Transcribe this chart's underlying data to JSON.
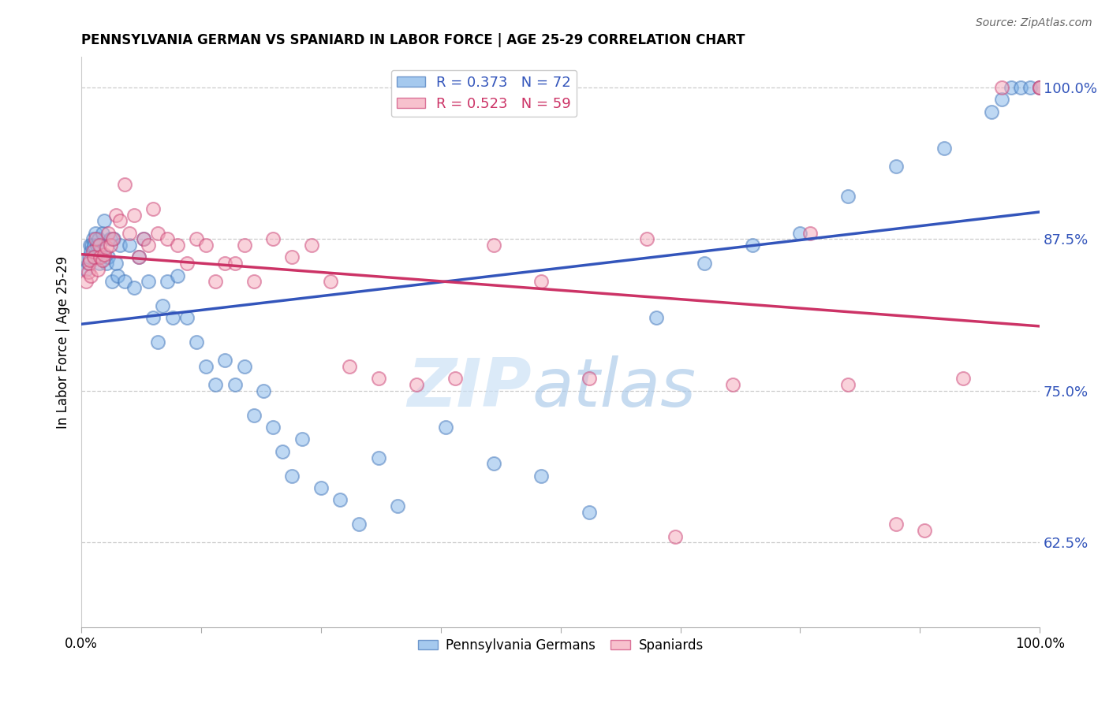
{
  "title": "PENNSYLVANIA GERMAN VS SPANIARD IN LABOR FORCE | AGE 25-29 CORRELATION CHART",
  "source": "Source: ZipAtlas.com",
  "ylabel": "In Labor Force | Age 25-29",
  "xlim": [
    0.0,
    1.0
  ],
  "ylim": [
    0.555,
    1.025
  ],
  "yticks": [
    0.625,
    0.75,
    0.875,
    1.0
  ],
  "ytick_labels": [
    "62.5%",
    "75.0%",
    "87.5%",
    "100.0%"
  ],
  "xticks": [
    0.0,
    0.125,
    0.25,
    0.375,
    0.5,
    0.625,
    0.75,
    0.875,
    1.0
  ],
  "xtick_labels": [
    "0.0%",
    "",
    "",
    "",
    "",
    "",
    "",
    "",
    "100.0%"
  ],
  "bg_color": "#ffffff",
  "grid_color": "#cccccc",
  "blue_color": "#7fb3e8",
  "pink_color": "#f4a7b9",
  "blue_edge_color": "#4477bb",
  "pink_edge_color": "#cc4477",
  "blue_line_color": "#3355bb",
  "pink_line_color": "#cc3366",
  "legend_blue_label": "R = 0.373   N = 72",
  "legend_pink_label": "R = 0.523   N = 59",
  "watermark_zip": "ZIP",
  "watermark_atlas": "atlas",
  "blue_x": [
    0.005,
    0.007,
    0.008,
    0.009,
    0.01,
    0.011,
    0.012,
    0.013,
    0.014,
    0.015,
    0.016,
    0.017,
    0.018,
    0.019,
    0.02,
    0.022,
    0.024,
    0.026,
    0.028,
    0.03,
    0.032,
    0.034,
    0.036,
    0.038,
    0.04,
    0.045,
    0.05,
    0.055,
    0.06,
    0.065,
    0.07,
    0.075,
    0.08,
    0.085,
    0.09,
    0.095,
    0.1,
    0.11,
    0.12,
    0.13,
    0.14,
    0.15,
    0.16,
    0.17,
    0.18,
    0.19,
    0.2,
    0.21,
    0.22,
    0.23,
    0.25,
    0.27,
    0.29,
    0.31,
    0.33,
    0.38,
    0.43,
    0.48,
    0.53,
    0.6,
    0.65,
    0.7,
    0.75,
    0.8,
    0.85,
    0.9,
    0.95,
    0.96,
    0.97,
    0.98,
    0.99,
    1.0
  ],
  "blue_y": [
    0.85,
    0.855,
    0.86,
    0.87,
    0.865,
    0.87,
    0.875,
    0.87,
    0.86,
    0.88,
    0.87,
    0.86,
    0.875,
    0.855,
    0.865,
    0.88,
    0.89,
    0.855,
    0.86,
    0.875,
    0.84,
    0.875,
    0.855,
    0.845,
    0.87,
    0.84,
    0.87,
    0.835,
    0.86,
    0.875,
    0.84,
    0.81,
    0.79,
    0.82,
    0.84,
    0.81,
    0.845,
    0.81,
    0.79,
    0.77,
    0.755,
    0.775,
    0.755,
    0.77,
    0.73,
    0.75,
    0.72,
    0.7,
    0.68,
    0.71,
    0.67,
    0.66,
    0.64,
    0.695,
    0.655,
    0.72,
    0.69,
    0.68,
    0.65,
    0.81,
    0.855,
    0.87,
    0.88,
    0.91,
    0.935,
    0.95,
    0.98,
    0.99,
    1.0,
    1.0,
    1.0,
    1.0
  ],
  "pink_x": [
    0.005,
    0.007,
    0.008,
    0.009,
    0.01,
    0.012,
    0.013,
    0.015,
    0.017,
    0.019,
    0.02,
    0.022,
    0.024,
    0.026,
    0.028,
    0.03,
    0.033,
    0.036,
    0.04,
    0.045,
    0.05,
    0.055,
    0.06,
    0.065,
    0.07,
    0.075,
    0.08,
    0.09,
    0.1,
    0.11,
    0.12,
    0.13,
    0.14,
    0.15,
    0.16,
    0.17,
    0.18,
    0.2,
    0.22,
    0.24,
    0.26,
    0.28,
    0.31,
    0.35,
    0.39,
    0.43,
    0.48,
    0.53,
    0.59,
    0.62,
    0.68,
    0.76,
    0.8,
    0.85,
    0.88,
    0.92,
    0.96,
    1.0,
    1.0
  ],
  "pink_y": [
    0.84,
    0.848,
    0.855,
    0.858,
    0.845,
    0.865,
    0.86,
    0.875,
    0.85,
    0.87,
    0.86,
    0.858,
    0.862,
    0.868,
    0.88,
    0.87,
    0.875,
    0.895,
    0.89,
    0.92,
    0.88,
    0.895,
    0.86,
    0.875,
    0.87,
    0.9,
    0.88,
    0.875,
    0.87,
    0.855,
    0.875,
    0.87,
    0.84,
    0.855,
    0.855,
    0.87,
    0.84,
    0.875,
    0.86,
    0.87,
    0.84,
    0.77,
    0.76,
    0.755,
    0.76,
    0.87,
    0.84,
    0.76,
    0.875,
    0.63,
    0.755,
    0.88,
    0.755,
    0.64,
    0.635,
    0.76,
    1.0,
    1.0,
    1.0
  ]
}
